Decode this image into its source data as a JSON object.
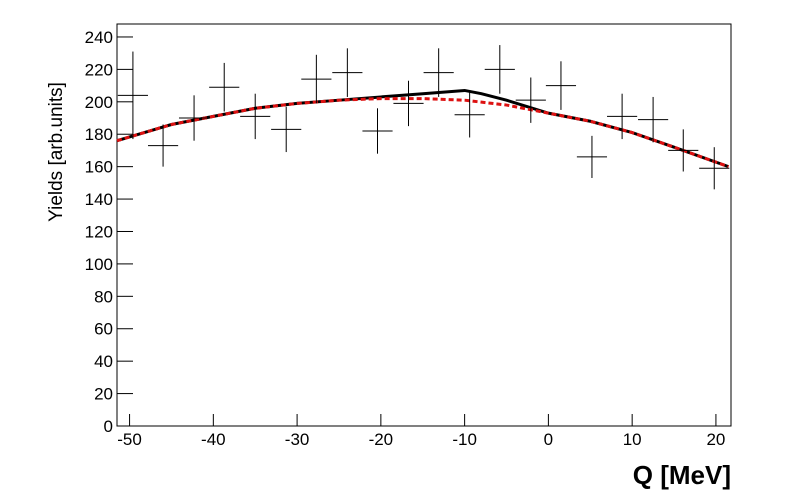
{
  "chart_data": {
    "type": "errorbar",
    "xlabel": "Q [MeV]",
    "ylabel": "Yields [arb.units]",
    "xlim": [
      -51.5,
      21.8
    ],
    "ylim": [
      0,
      248
    ],
    "xticks": [
      -50,
      -40,
      -30,
      -20,
      -10,
      0,
      10,
      20
    ],
    "yticks": [
      0,
      20,
      40,
      60,
      80,
      100,
      120,
      140,
      160,
      180,
      200,
      220,
      240
    ],
    "points": {
      "color": "#000000",
      "x": [
        -49.6,
        -46,
        -42.3,
        -38.7,
        -35,
        -31.3,
        -27.7,
        -24,
        -20.4,
        -16.7,
        -13.1,
        -9.4,
        -5.8,
        -2.1,
        1.5,
        5.2,
        8.8,
        12.5,
        16.1,
        19.8
      ],
      "y": [
        204,
        173,
        190,
        209,
        191,
        183,
        214,
        218,
        182,
        199,
        218,
        192,
        220,
        201,
        210,
        166,
        191,
        189,
        170,
        159
      ],
      "yerr": [
        27,
        13,
        14,
        15,
        14,
        14,
        15,
        15,
        14,
        14,
        15,
        14,
        15,
        14,
        15,
        13,
        14,
        14,
        13,
        13
      ],
      "xerr": 1.8
    },
    "curves": [
      {
        "color": "#000000",
        "dashed": false,
        "x": [
          -51.5,
          -45,
          -40,
          -35,
          -30,
          -25,
          -20,
          -15,
          -10,
          -8,
          -5,
          0,
          5,
          10,
          15,
          21.5
        ],
        "y": [
          176,
          186,
          191,
          196,
          199,
          201,
          203,
          205,
          207,
          205,
          201,
          193,
          188,
          181,
          172,
          160
        ]
      },
      {
        "color": "#dd1111",
        "dashed": true,
        "x": [
          -51.5,
          -45,
          -40,
          -35,
          -30,
          -25,
          -20,
          -15,
          -10,
          -5,
          0,
          5,
          10,
          15,
          21.5
        ],
        "y": [
          176,
          186,
          191,
          196,
          199,
          201,
          202,
          202,
          201,
          198,
          193,
          188,
          181,
          172,
          160
        ]
      }
    ]
  }
}
